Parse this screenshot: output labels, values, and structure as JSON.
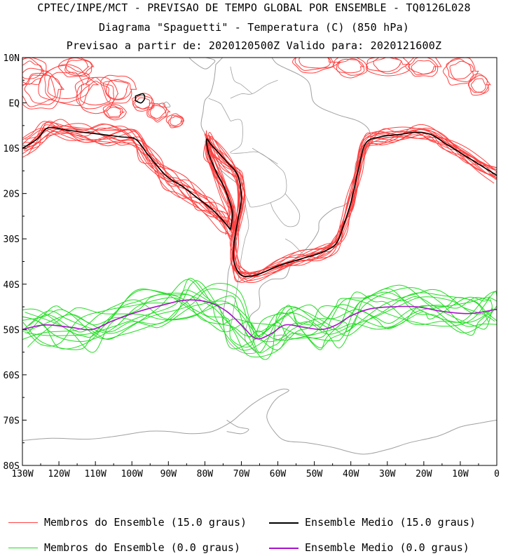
{
  "header": {
    "line1": "CPTEC/INPE/MCT - PREVISAO DE TEMPO GLOBAL POR ENSEMBLE - TQ0126L028",
    "line2": "Diagrama \"Spaguetti\" - Temperatura (C) (850 hPa)",
    "line3": "Previsao a partir de: 2020120500Z  Valido para: 2020121600Z"
  },
  "axes": {
    "lat_labels": [
      "10N",
      "EQ",
      "10S",
      "20S",
      "30S",
      "40S",
      "50S",
      "60S",
      "70S",
      "80S"
    ],
    "lat_values": [
      10,
      0,
      -10,
      -20,
      -30,
      -40,
      -50,
      -60,
      -70,
      -80
    ],
    "lon_labels": [
      "130W",
      "120W",
      "110W",
      "100W",
      "90W",
      "80W",
      "70W",
      "60W",
      "50W",
      "40W",
      "30W",
      "20W",
      "10W",
      "0"
    ],
    "lon_values": [
      -130,
      -120,
      -110,
      -100,
      -90,
      -80,
      -70,
      -60,
      -50,
      -40,
      -30,
      -20,
      -10,
      0
    ]
  },
  "extent": {
    "lon": [
      -130,
      0
    ],
    "lat": [
      -80,
      10
    ]
  },
  "colors": {
    "member_15": "#ff4040",
    "mean_15": "#000000",
    "member_0": "#22dd22",
    "mean_0": "#aa10cc",
    "coast": "#a0a0a0"
  },
  "legend": [
    {
      "label": "Membros do Ensemble (15.0 graus)",
      "color": "#ff4040"
    },
    {
      "label": "Ensemble Medio (15.0 graus)",
      "color": "#000000"
    },
    {
      "label": "Membros do Ensemble (0.0 graus)",
      "color": "#22dd22"
    },
    {
      "label": "Ensemble Medio (0.0 graus)",
      "color": "#aa10cc"
    }
  ],
  "contours": {
    "mean_15_pacific": [
      [
        -130,
        -10
      ],
      [
        -126,
        -8
      ],
      [
        -123,
        -5.5
      ],
      [
        -118,
        -6
      ],
      [
        -113,
        -6.5
      ],
      [
        -108,
        -7
      ],
      [
        -103,
        -7.5
      ],
      [
        -99,
        -8
      ],
      [
        -96,
        -11
      ],
      [
        -93,
        -14
      ],
      [
        -90,
        -16.5
      ],
      [
        -86,
        -18.5
      ],
      [
        -82,
        -21
      ],
      [
        -78,
        -23.5
      ],
      [
        -75,
        -26
      ],
      [
        -73,
        -28
      ]
    ],
    "mean_15_andes": [
      [
        -73,
        -28
      ],
      [
        -72.5,
        -24
      ],
      [
        -74.5,
        -19
      ],
      [
        -77,
        -15
      ],
      [
        -79,
        -11
      ],
      [
        -79.5,
        -8
      ],
      [
        -78,
        -9.5
      ],
      [
        -74,
        -13
      ],
      [
        -71,
        -16
      ],
      [
        -70,
        -21
      ],
      [
        -71,
        -26
      ],
      [
        -72,
        -31
      ],
      [
        -72,
        -35
      ],
      [
        -70,
        -38
      ],
      [
        -66,
        -38
      ],
      [
        -60,
        -36
      ],
      [
        -54,
        -34.5
      ],
      [
        -48,
        -33
      ],
      [
        -44,
        -31
      ],
      [
        -42,
        -27
      ],
      [
        -40,
        -22
      ],
      [
        -38,
        -15
      ],
      [
        -36,
        -9
      ],
      [
        -32,
        -7.5
      ],
      [
        -27,
        -7
      ],
      [
        -22,
        -6.5
      ],
      [
        -18,
        -7
      ],
      [
        -14,
        -9
      ],
      [
        -9,
        -11.5
      ],
      [
        -4,
        -14
      ],
      [
        0,
        -16
      ]
    ],
    "mean_0": [
      [
        -130,
        -50
      ],
      [
        -124,
        -49
      ],
      [
        -117,
        -49.5
      ],
      [
        -111,
        -50
      ],
      [
        -105,
        -48
      ],
      [
        -98,
        -46
      ],
      [
        -91,
        -44.5
      ],
      [
        -85,
        -43.5
      ],
      [
        -79,
        -44
      ],
      [
        -74,
        -46
      ],
      [
        -70,
        -49
      ],
      [
        -66,
        -52
      ],
      [
        -62,
        -51
      ],
      [
        -58,
        -49
      ],
      [
        -53,
        -49.5
      ],
      [
        -48,
        -50
      ],
      [
        -44,
        -49
      ],
      [
        -40,
        -47
      ],
      [
        -35,
        -45.5
      ],
      [
        -29,
        -45
      ],
      [
        -22,
        -45
      ],
      [
        -15,
        -46
      ],
      [
        -8,
        -46.5
      ],
      [
        -3,
        -46
      ],
      [
        0,
        -45.5
      ]
    ]
  }
}
